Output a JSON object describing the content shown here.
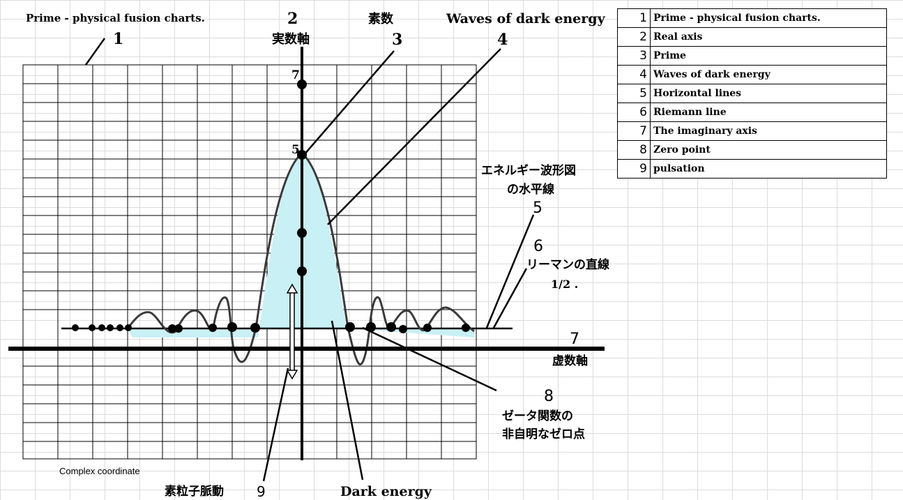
{
  "labels": {
    "title": "Prime - physical fusion charts.",
    "title_num": "1",
    "real_axis_num": "2",
    "real_axis": "実数軸",
    "prime": "素数",
    "prime_num": "3",
    "waves": "Waves of dark energy",
    "waves_num": "4",
    "tick_7": "7",
    "tick_5": "5",
    "energy_line_1": "エネルギー波形図",
    "energy_line_2": "の水平線",
    "horizontal_num": "5",
    "riemann_num": "6",
    "riemann": "リーマンの直線",
    "riemann_value": "1/2 .",
    "imag_num": "7",
    "imag_axis": "虚数軸",
    "zero_num": "8",
    "zero_line_1": "ゼータ関数の",
    "zero_line_2": "非自明なゼロ点",
    "complex": "Complex coordinate",
    "pulsation": "素粒子脈動",
    "pulsation_num": "9",
    "dark_energy": "Dark energy"
  },
  "legend": [
    {
      "num": "1",
      "text": "Prime - physical fusion charts."
    },
    {
      "num": "2",
      "text": "Real axis"
    },
    {
      "num": "3",
      "text": "Prime"
    },
    {
      "num": "4",
      "text": "Waves of dark energy"
    },
    {
      "num": "5",
      "text": "Horizontal lines"
    },
    {
      "num": "6",
      "text": "Riemann line"
    },
    {
      "num": "7",
      "text": "The imaginary axis"
    },
    {
      "num": "8",
      "text": "Zero point"
    },
    {
      "num": "9",
      "text": "pulsation"
    }
  ],
  "colors": {
    "wave_fill": "#c9f0f4",
    "wave_stroke": "#3a3a3a",
    "line": "#000000"
  }
}
